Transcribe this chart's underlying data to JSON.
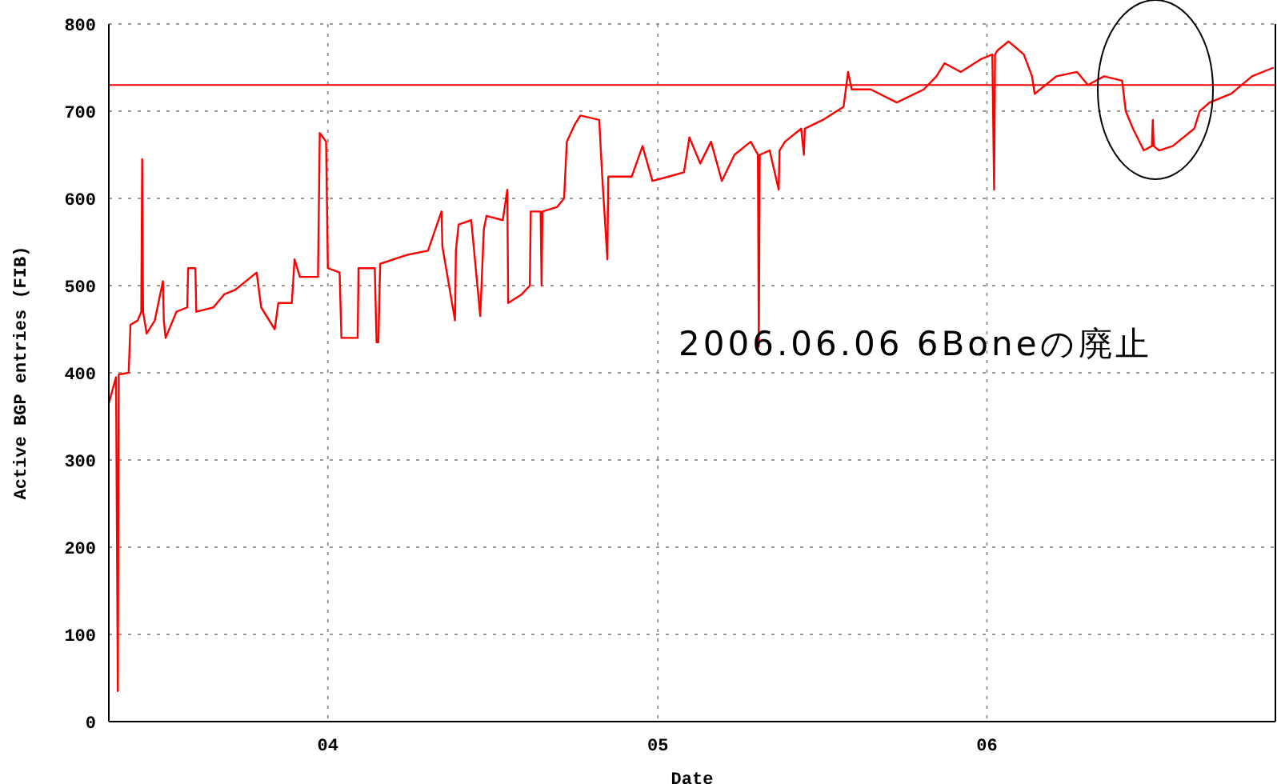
{
  "chart_data": {
    "type": "line",
    "xlabel": "Date",
    "ylabel": "Active BGP entries (FIB)",
    "annotations": [
      "2006.06.06 6Boneの廃止"
    ],
    "xlim": [
      "2003-05-03",
      "2006-11-17"
    ],
    "xticks": [
      {
        "value": "2004-01-01",
        "label": "04"
      },
      {
        "value": "2005-01-01",
        "label": "05"
      },
      {
        "value": "2006-01-01",
        "label": "06"
      }
    ],
    "ylim": [
      0,
      800
    ],
    "yticks": [
      0,
      100,
      200,
      300,
      400,
      500,
      600,
      700,
      800
    ],
    "grid": true,
    "marker": "none",
    "line_style": "solid",
    "ref_lines": [
      {
        "axis": "y",
        "value": 730,
        "color": "#ff0000"
      }
    ],
    "x": [
      "2003-05-03",
      "2003-05-07",
      "2003-05-11",
      "2003-05-13",
      "2003-05-14",
      "2003-05-25",
      "2003-05-27",
      "2003-06-04",
      "2003-06-08",
      "2003-06-09",
      "2003-06-10",
      "2003-06-14",
      "2003-06-23",
      "2003-07-02",
      "2003-07-03",
      "2003-07-05",
      "2003-07-17",
      "2003-07-29",
      "2003-07-30",
      "2003-08-07",
      "2003-08-08",
      "2003-08-27",
      "2003-09-08",
      "2003-09-20",
      "2003-10-14",
      "2003-10-19",
      "2003-11-03",
      "2003-11-07",
      "2003-11-22",
      "2003-11-25",
      "2003-12-01",
      "2003-12-21",
      "2003-12-23",
      "2003-12-30",
      "2004-01-01",
      "2004-01-14",
      "2004-01-16",
      "2004-02-03",
      "2004-02-04",
      "2004-02-22",
      "2004-02-24",
      "2004-02-26",
      "2004-02-28",
      "2004-03-28",
      "2004-04-21",
      "2004-05-06",
      "2004-05-07",
      "2004-05-21",
      "2004-05-22",
      "2004-05-25",
      "2004-06-08",
      "2004-06-18",
      "2004-06-22",
      "2004-06-25",
      "2004-07-13",
      "2004-07-18",
      "2004-07-19",
      "2004-08-03",
      "2004-08-12",
      "2004-08-13",
      "2004-08-24",
      "2004-08-25",
      "2004-08-26",
      "2004-09-11",
      "2004-09-19",
      "2004-09-22",
      "2004-10-01",
      "2004-10-07",
      "2004-10-28",
      "2004-10-31",
      "2004-11-06",
      "2004-11-07",
      "2004-12-03",
      "2004-12-15",
      "2004-12-26",
      "2005-01-13",
      "2005-01-30",
      "2005-02-05",
      "2005-02-17",
      "2005-03-01",
      "2005-03-13",
      "2005-03-27",
      "2005-04-14",
      "2005-04-22",
      "2005-04-23",
      "2005-04-24",
      "2005-05-05",
      "2005-05-15",
      "2005-05-16",
      "2005-05-22",
      "2005-06-09",
      "2005-06-12",
      "2005-06-13",
      "2005-07-03",
      "2005-07-26",
      "2005-07-31",
      "2005-08-04",
      "2005-08-25",
      "2005-09-23",
      "2005-10-23",
      "2005-11-06",
      "2005-11-15",
      "2005-12-03",
      "2005-12-26",
      "2006-01-07",
      "2006-01-09",
      "2006-01-10",
      "2006-01-13",
      "2006-01-25",
      "2006-02-11",
      "2006-02-20",
      "2006-02-23",
      "2006-03-19",
      "2006-04-11",
      "2006-04-23",
      "2006-05-11",
      "2006-05-31",
      "2006-06-04",
      "2006-06-12",
      "2006-06-24",
      "2006-07-03",
      "2006-07-04",
      "2006-07-05",
      "2006-07-11",
      "2006-07-26",
      "2006-08-19",
      "2006-08-25",
      "2006-09-05",
      "2006-09-29",
      "2006-10-22",
      "2006-11-15"
    ],
    "series": [
      {
        "color": "#ff0000",
        "values": [
          365,
          380,
          395,
          35,
          398,
          400,
          455,
          460,
          470,
          645,
          470,
          445,
          460,
          505,
          460,
          440,
          470,
          475,
          520,
          520,
          470,
          475,
          490,
          495,
          515,
          475,
          450,
          480,
          480,
          530,
          510,
          510,
          675,
          665,
          520,
          515,
          440,
          440,
          520,
          520,
          435,
          435,
          525,
          535,
          540,
          585,
          545,
          460,
          540,
          570,
          575,
          465,
          565,
          580,
          575,
          610,
          480,
          490,
          500,
          585,
          585,
          500,
          585,
          590,
          600,
          665,
          685,
          695,
          690,
          630,
          530,
          625,
          625,
          660,
          620,
          625,
          630,
          670,
          640,
          665,
          620,
          650,
          665,
          650,
          430,
          650,
          655,
          610,
          655,
          665,
          680,
          650,
          680,
          690,
          705,
          745,
          725,
          725,
          710,
          725,
          740,
          755,
          745,
          760,
          765,
          610,
          765,
          770,
          780,
          765,
          740,
          720,
          740,
          745,
          730,
          740,
          735,
          700,
          680,
          655,
          660,
          690,
          660,
          655,
          660,
          680,
          700,
          710,
          720,
          740,
          750
        ]
      }
    ]
  }
}
